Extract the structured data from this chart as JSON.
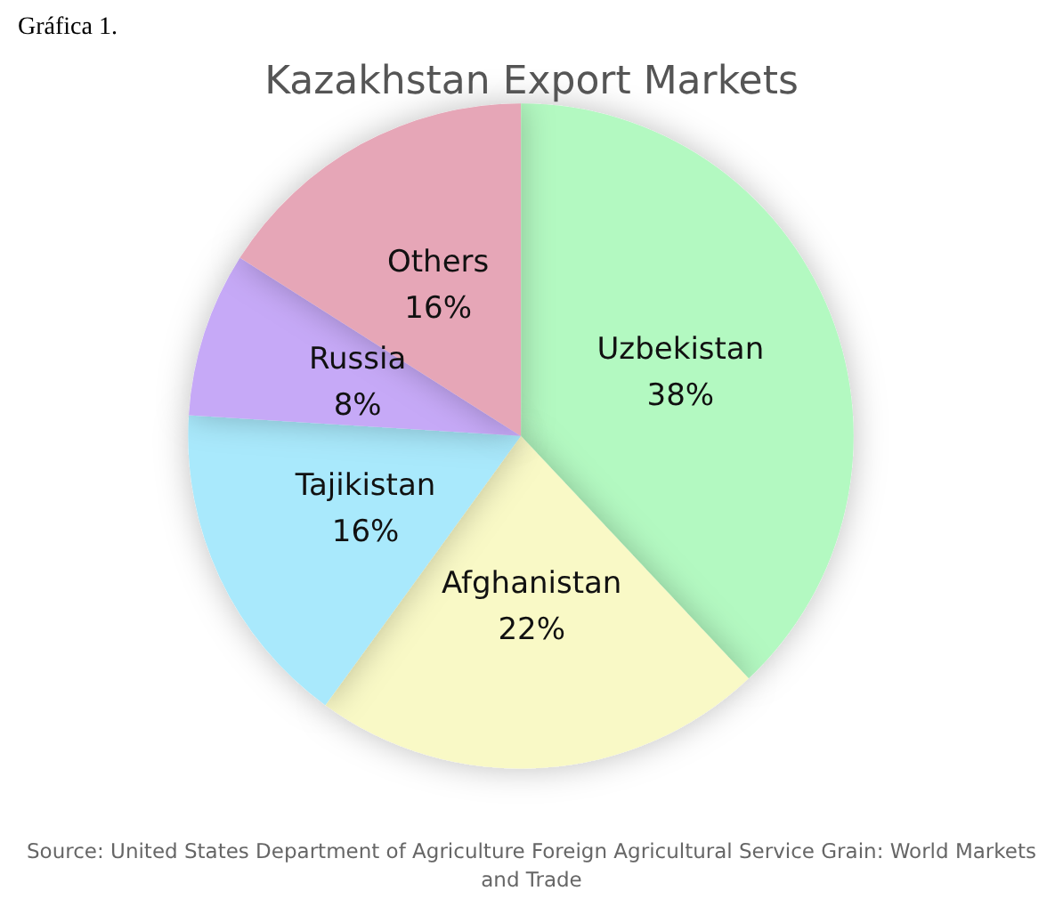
{
  "chart_data": {
    "type": "pie",
    "title": "Kazakhstan Export Markets",
    "categories": [
      "Uzbekistan",
      "Afghanistan",
      "Tajikistan",
      "Russia",
      "Others"
    ],
    "values": [
      38,
      22,
      16,
      8,
      16
    ],
    "colors": [
      "#b3f9c1",
      "#f9f9c6",
      "#a9e9fc",
      "#c6a9f7",
      "#e6a6b7"
    ],
    "value_labels": [
      "38%",
      "22%",
      "16%",
      "8%",
      "16%"
    ],
    "legend": false,
    "annotations": [
      "Gráfica 1.",
      "Source: United States Department of Agriculture Foreign Agricultural Service Grain: World Markets and Trade"
    ]
  }
}
